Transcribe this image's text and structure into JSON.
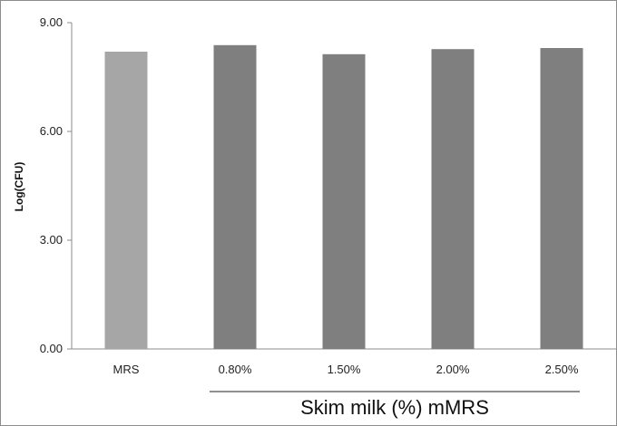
{
  "chart_data": {
    "type": "bar",
    "categories": [
      "MRS",
      "0.80%",
      "1.50%",
      "2.00%",
      "2.50%"
    ],
    "values": [
      8.2,
      8.38,
      8.13,
      8.27,
      8.3
    ],
    "bar_colors": [
      "#a6a6a6",
      "#7f7f7f",
      "#7f7f7f",
      "#7f7f7f",
      "#7f7f7f"
    ],
    "ylabel": "Log(CFU)",
    "ylim": [
      0,
      9
    ],
    "yticks": [
      "0.00",
      "3.00",
      "6.00",
      "9.00"
    ],
    "ytick_values": [
      0,
      3,
      6,
      9
    ],
    "group_label": "Skim milk (%) mMRS",
    "grid": false,
    "legend": "none"
  }
}
